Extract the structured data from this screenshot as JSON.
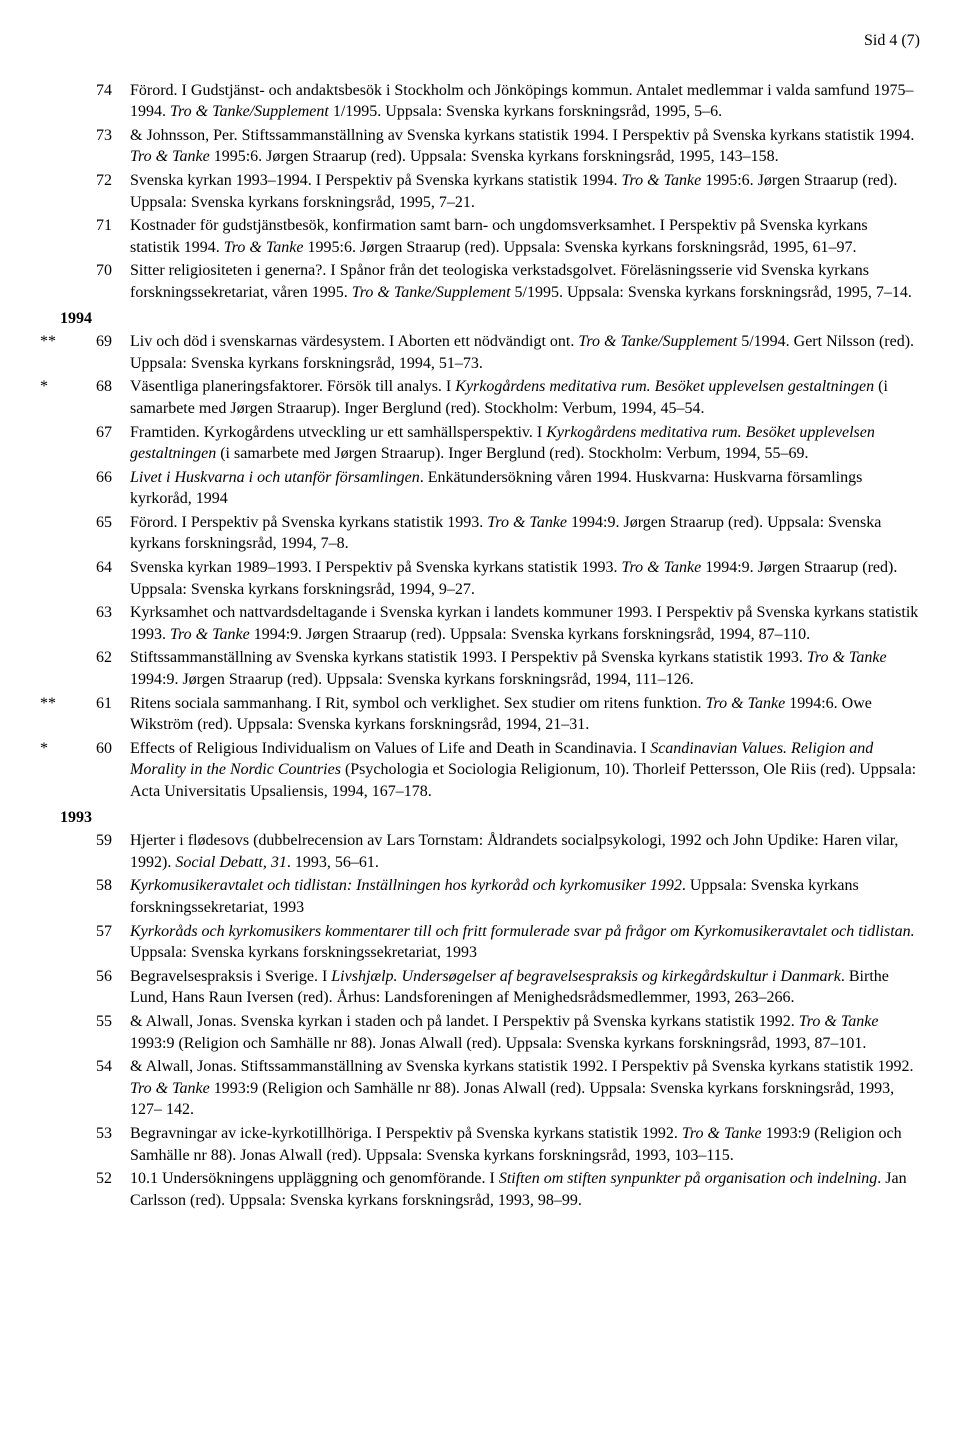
{
  "page_header": "Sid 4 (7)",
  "years": {
    "y1994": "1994",
    "y1993": "1993"
  },
  "entries": {
    "e74": {
      "marker": "",
      "num": "74",
      "html": "Förord. I Gudstjänst- och andaktsbesök i Stockholm och Jönköpings kommun. Antalet medlemmar i valda samfund 1975–1994. <i>Tro &amp; Tanke/Supplement</i> 1/1995. Uppsala: Svenska kyrkans forskningsråd, 1995, 5–6."
    },
    "e73": {
      "marker": "",
      "num": "73",
      "html": "&amp; Johnsson, Per. Stiftssammanställning av Svenska kyrkans statistik 1994. I Perspektiv på Svenska kyrkans statistik 1994. <i>Tro &amp; Tanke</i> 1995:6. Jørgen Straarup (red). Uppsala: Svenska kyrkans forskningsråd, 1995, 143–158."
    },
    "e72": {
      "marker": "",
      "num": "72",
      "html": "Svenska kyrkan 1993–1994. I Perspektiv på Svenska kyrkans statistik 1994. <i>Tro &amp; Tanke</i> 1995:6. Jørgen Straarup (red). Uppsala: Svenska kyrkans forskningsråd, 1995, 7–21."
    },
    "e71": {
      "marker": "",
      "num": "71",
      "html": "Kostnader för gudstjänstbesök, konfirmation samt barn- och ungdomsverksamhet. I Perspektiv på Svenska kyrkans statistik 1994. <i>Tro &amp; Tanke</i> 1995:6. Jørgen Straarup (red). Uppsala: Svenska kyrkans forskningsråd, 1995, 61–97."
    },
    "e70": {
      "marker": "",
      "num": "70",
      "html": "Sitter religiositeten i generna?. I Spånor från det teologiska verkstadsgolvet. Föreläsningsserie vid Svenska kyrkans forskningssekretariat, våren 1995. <i>Tro &amp; Tanke/Supplement</i> 5/1995. Uppsala: Svenska kyrkans forskningsråd, 1995, 7–14."
    },
    "e69": {
      "marker": "**",
      "num": "69",
      "html": "Liv och död i svenskarnas värdesystem. I Aborten ett nödvändigt ont. <i>Tro &amp; Tanke/Supplement</i> 5/1994. Gert Nilsson (red). Uppsala: Svenska kyrkans forskningsråd, 1994, 51–73."
    },
    "e68": {
      "marker": "*",
      "num": "68",
      "html": "Väsentliga planeringsfaktorer. Försök till analys. I <i>Kyrkogårdens meditativa rum. Besöket upplevelsen gestaltningen</i> (i samarbete med Jørgen Straarup). Inger Berglund (red). Stockholm: Verbum, 1994, 45–54."
    },
    "e67": {
      "marker": "",
      "num": "67",
      "html": "Framtiden. Kyrkogårdens utveckling ur ett samhällsperspektiv. I <i>Kyrkogårdens meditativa rum. Besöket upplevelsen gestaltningen</i> (i samarbete med Jørgen Straarup). Inger Berglund (red). Stockholm: Verbum, 1994, 55–69."
    },
    "e66": {
      "marker": "",
      "num": "66",
      "html": "<i>Livet i Huskvarna i och utanför församlingen</i>. Enkätundersökning våren 1994. Huskvarna: Huskvarna församlings kyrkoråd, 1994"
    },
    "e65": {
      "marker": "",
      "num": "65",
      "html": "Förord. I Perspektiv på Svenska kyrkans statistik 1993. <i>Tro &amp; Tanke</i> 1994:9. Jørgen Straarup (red). Uppsala: Svenska kyrkans forskningsråd, 1994, 7–8."
    },
    "e64": {
      "marker": "",
      "num": "64",
      "html": "Svenska kyrkan 1989–1993. I Perspektiv på Svenska kyrkans statistik 1993. <i>Tro &amp; Tanke</i> 1994:9. Jørgen Straarup (red). Uppsala: Svenska kyrkans forskningsråd, 1994, 9–27."
    },
    "e63": {
      "marker": "",
      "num": "63",
      "html": "Kyrksamhet och nattvardsdeltagande i Svenska kyrkan i landets kommuner 1993. I Perspektiv på Svenska kyrkans statistik 1993. <i>Tro &amp; Tanke</i> 1994:9. Jørgen Straarup (red). Uppsala: Svenska kyrkans forskningsråd, 1994, 87–110."
    },
    "e62": {
      "marker": "",
      "num": "62",
      "html": "Stiftssammanställning av Svenska kyrkans statistik 1993. I Perspektiv på Svenska kyrkans statistik 1993. <i>Tro &amp; Tanke</i> 1994:9. Jørgen Straarup (red). Uppsala: Svenska kyrkans forskningsråd, 1994, 111–126."
    },
    "e61": {
      "marker": "**",
      "num": "61",
      "html": "Ritens sociala sammanhang. I Rit, symbol och verklighet. Sex studier om ritens funktion. <i>Tro &amp; Tanke</i> 1994:6. Owe Wikström (red). Uppsala: Svenska kyrkans forskningsråd, 1994, 21–31."
    },
    "e60": {
      "marker": "*",
      "num": "60",
      "html": "Effects of Religious Individualism on Values of Life and Death in Scandinavia. I <i>Scandinavian Values. Religion and Morality in the Nordic Countries</i> (Psychologia et Sociologia Religionum, 10). Thorleif Pettersson, Ole Riis (red). Uppsala: Acta Universitatis Upsaliensis, 1994, 167–178."
    },
    "e59": {
      "marker": "",
      "num": "59",
      "html": "Hjerter i flødesovs (dubbelrecension av Lars Tornstam: Åldrandets socialpsykologi, 1992 och John Updike: Haren vilar, 1992). <i>Social Debatt, 31</i>. 1993, 56–61."
    },
    "e58": {
      "marker": "",
      "num": "58",
      "html": "<i>Kyrkomusikeravtalet och tidlistan: Inställningen hos kyrkoråd och kyrkomusiker 1992</i>. Uppsala: Svenska kyrkans forskningssekretariat, 1993"
    },
    "e57": {
      "marker": "",
      "num": "57",
      "html": "<i>Kyrkoråds och kyrkomusikers kommentarer till och fritt formulerade svar på frågor om Kyrkomusikeravtalet och tidlistan.</i> Uppsala: Svenska kyrkans forskningssekretariat, 1993"
    },
    "e56": {
      "marker": "",
      "num": "56",
      "html": "Begravelsespraksis i Sverige. I <i>Livshjælp. Undersøgelser af begravelsespraksis og kirkegårdskultur i Danmark</i>. Birthe Lund, Hans Raun Iversen (red). Århus: Landsforeningen af Menighedsrådsmedlemmer, 1993, 263–266."
    },
    "e55": {
      "marker": "",
      "num": "55",
      "html": "&amp; Alwall, Jonas. Svenska kyrkan i staden och på landet. I Perspektiv på Svenska kyrkans statistik 1992. <i>Tro &amp; Tanke</i> 1993:9 (Religion och Samhälle nr 88). Jonas Alwall (red). Uppsala: Svenska kyrkans forskningsråd, 1993, 87–101."
    },
    "e54": {
      "marker": "",
      "num": "54",
      "html": "&amp; Alwall, Jonas. Stiftssammanställning av Svenska kyrkans statistik 1992. I Perspektiv på Svenska kyrkans statistik 1992. <i>Tro &amp; Tanke</i> 1993:9 (Religion och Samhälle nr 88). Jonas Alwall (red). Uppsala: Svenska kyrkans forskningsråd, 1993, 127– 142."
    },
    "e53": {
      "marker": "",
      "num": "53",
      "html": "Begravningar av icke-kyrkotillhöriga. I Perspektiv på Svenska kyrkans statistik 1992. <i>Tro &amp; Tanke</i> 1993:9 (Religion och Samhälle nr 88). Jonas Alwall (red). Uppsala: Svenska kyrkans forskningsråd, 1993, 103–115."
    },
    "e52": {
      "marker": "",
      "num": "52",
      "html": "10.1 Undersökningens uppläggning och genomförande. I <i>Stiften om stiften synpunkter på organisation och indelning</i>. Jan Carlsson (red). Uppsala: Svenska kyrkans forskningsråd, 1993, 98–99."
    }
  }
}
